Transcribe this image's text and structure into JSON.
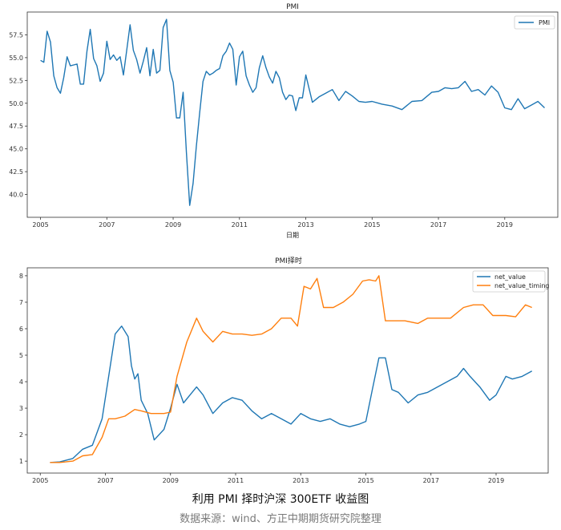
{
  "chart_data": [
    {
      "type": "line",
      "title": "PMI",
      "xlabel": "日期",
      "ylabel": "",
      "xlim": [
        2004.6,
        2020.6
      ],
      "ylim": [
        37.5,
        60.0
      ],
      "xticks": [
        2005,
        2007,
        2009,
        2011,
        2013,
        2015,
        2017,
        2019
      ],
      "yticks": [
        40.0,
        42.5,
        45.0,
        47.5,
        50.0,
        52.5,
        55.0,
        57.5
      ],
      "legend": "top-right",
      "series": [
        {
          "name": "PMI",
          "color": "#1f77b4",
          "x": [
            2005.0,
            2005.1,
            2005.2,
            2005.3,
            2005.4,
            2005.5,
            2005.6,
            2005.7,
            2005.8,
            2005.9,
            2006.0,
            2006.1,
            2006.2,
            2006.3,
            2006.4,
            2006.5,
            2006.6,
            2006.7,
            2006.8,
            2006.9,
            2007.0,
            2007.1,
            2007.2,
            2007.3,
            2007.4,
            2007.5,
            2007.6,
            2007.7,
            2007.8,
            2007.9,
            2008.0,
            2008.1,
            2008.2,
            2008.3,
            2008.4,
            2008.5,
            2008.6,
            2008.7,
            2008.8,
            2008.9,
            2009.0,
            2009.1,
            2009.2,
            2009.3,
            2009.4,
            2009.5,
            2009.6,
            2009.7,
            2009.8,
            2009.9,
            2010.0,
            2010.1,
            2010.2,
            2010.3,
            2010.4,
            2010.5,
            2010.6,
            2010.7,
            2010.8,
            2010.9,
            2011.0,
            2011.1,
            2011.2,
            2011.3,
            2011.4,
            2011.5,
            2011.6,
            2011.7,
            2011.8,
            2011.9,
            2012.0,
            2012.1,
            2012.2,
            2012.3,
            2012.4,
            2012.5,
            2012.6,
            2012.7,
            2012.8,
            2012.9,
            2013.0,
            2013.2,
            2013.4,
            2013.6,
            2013.8,
            2014.0,
            2014.2,
            2014.4,
            2014.6,
            2014.8,
            2015.0,
            2015.3,
            2015.6,
            2015.9,
            2016.2,
            2016.5,
            2016.8,
            2017.0,
            2017.2,
            2017.4,
            2017.6,
            2017.8,
            2018.0,
            2018.2,
            2018.4,
            2018.6,
            2018.8,
            2019.0,
            2019.2,
            2019.4,
            2019.6,
            2019.8,
            2020.0,
            2020.2
          ],
          "y": [
            54.7,
            54.5,
            57.9,
            56.7,
            53.0,
            51.7,
            51.1,
            52.8,
            55.1,
            54.1,
            54.2,
            54.3,
            52.1,
            52.1,
            55.7,
            58.1,
            54.9,
            54.1,
            52.4,
            53.3,
            56.8,
            54.8,
            55.3,
            54.7,
            55.1,
            53.1,
            55.8,
            58.6,
            55.8,
            54.8,
            53.3,
            54.6,
            56.1,
            53.0,
            55.9,
            53.3,
            53.6,
            58.3,
            59.2,
            53.6,
            52.3,
            48.4,
            48.4,
            51.2,
            44.6,
            38.8,
            41.2,
            45.3,
            49.0,
            52.4,
            53.5,
            53.1,
            53.3,
            53.6,
            53.8,
            55.2,
            55.7,
            56.6,
            55.9,
            52.0,
            55.1,
            55.7,
            53.0,
            52.0,
            51.2,
            51.7,
            53.9,
            55.2,
            53.9,
            52.9,
            52.2,
            53.5,
            52.8,
            51.2,
            50.4,
            50.9,
            50.8,
            49.2,
            50.6,
            50.6,
            53.1,
            50.1,
            50.7,
            51.1,
            51.5,
            50.3,
            51.3,
            50.8,
            50.2,
            50.1,
            50.2,
            49.9,
            49.7,
            49.3,
            50.2,
            50.3,
            51.2,
            51.3,
            51.7,
            51.6,
            51.7,
            52.4,
            51.3,
            51.5,
            50.9,
            51.9,
            51.2,
            49.5,
            49.3,
            50.5,
            49.4,
            49.8,
            50.2,
            49.5
          ]
        }
      ]
    },
    {
      "type": "line",
      "title": "PMI择时",
      "xlabel": "",
      "ylabel": "",
      "xlim": [
        2004.6,
        2020.6
      ],
      "ylim": [
        0.55,
        8.3
      ],
      "xticks": [
        2005,
        2007,
        2009,
        2011,
        2013,
        2015,
        2017,
        2019
      ],
      "yticks": [
        1,
        2,
        3,
        4,
        5,
        6,
        7,
        8
      ],
      "legend": "top-right",
      "series": [
        {
          "name": "net_value",
          "color": "#1f77b4",
          "x": [
            2005.3,
            2005.6,
            2006.0,
            2006.3,
            2006.6,
            2006.9,
            2007.1,
            2007.3,
            2007.5,
            2007.7,
            2007.8,
            2007.9,
            2008.0,
            2008.1,
            2008.3,
            2008.5,
            2008.8,
            2009.0,
            2009.2,
            2009.4,
            2009.6,
            2009.8,
            2010.0,
            2010.3,
            2010.6,
            2010.9,
            2011.2,
            2011.5,
            2011.8,
            2012.1,
            2012.4,
            2012.7,
            2013.0,
            2013.3,
            2013.6,
            2013.9,
            2014.2,
            2014.5,
            2014.8,
            2015.0,
            2015.2,
            2015.4,
            2015.6,
            2015.8,
            2016.0,
            2016.3,
            2016.6,
            2016.9,
            2017.2,
            2017.5,
            2017.8,
            2018.0,
            2018.2,
            2018.5,
            2018.8,
            2019.0,
            2019.3,
            2019.5,
            2019.8,
            2020.1
          ],
          "y": [
            0.95,
            0.97,
            1.1,
            1.45,
            1.6,
            2.6,
            4.2,
            5.8,
            6.1,
            5.7,
            4.6,
            4.1,
            4.3,
            3.3,
            2.8,
            1.8,
            2.2,
            3.0,
            3.9,
            3.2,
            3.5,
            3.8,
            3.5,
            2.8,
            3.2,
            3.4,
            3.3,
            2.9,
            2.6,
            2.8,
            2.6,
            2.4,
            2.8,
            2.6,
            2.5,
            2.6,
            2.4,
            2.3,
            2.4,
            2.5,
            3.7,
            4.9,
            4.9,
            3.7,
            3.6,
            3.2,
            3.5,
            3.6,
            3.8,
            4.0,
            4.2,
            4.5,
            4.2,
            3.8,
            3.3,
            3.5,
            4.2,
            4.1,
            4.2,
            4.4
          ]
        },
        {
          "name": "net_value_timing",
          "color": "#ff7f0e",
          "x": [
            2005.3,
            2005.6,
            2006.0,
            2006.3,
            2006.6,
            2006.9,
            2007.1,
            2007.3,
            2007.6,
            2007.9,
            2008.1,
            2008.4,
            2008.8,
            2009.0,
            2009.2,
            2009.5,
            2009.8,
            2010.0,
            2010.3,
            2010.6,
            2010.9,
            2011.2,
            2011.5,
            2011.8,
            2012.1,
            2012.4,
            2012.7,
            2012.9,
            2013.1,
            2013.3,
            2013.5,
            2013.7,
            2014.0,
            2014.3,
            2014.6,
            2014.9,
            2015.1,
            2015.3,
            2015.4,
            2015.6,
            2015.9,
            2016.2,
            2016.6,
            2016.9,
            2017.2,
            2017.6,
            2018.0,
            2018.3,
            2018.6,
            2018.9,
            2019.1,
            2019.3,
            2019.6,
            2019.9,
            2020.1
          ],
          "y": [
            0.95,
            0.95,
            1.0,
            1.2,
            1.25,
            1.9,
            2.6,
            2.6,
            2.7,
            2.95,
            2.9,
            2.8,
            2.8,
            2.85,
            4.2,
            5.5,
            6.4,
            5.9,
            5.5,
            5.9,
            5.8,
            5.8,
            5.75,
            5.8,
            6.0,
            6.4,
            6.4,
            6.1,
            7.6,
            7.5,
            7.9,
            6.8,
            6.8,
            7.0,
            7.3,
            7.8,
            7.85,
            7.8,
            8.0,
            6.3,
            6.3,
            6.3,
            6.2,
            6.4,
            6.4,
            6.4,
            6.8,
            6.9,
            6.9,
            6.5,
            6.5,
            6.5,
            6.45,
            6.9,
            6.8
          ]
        }
      ]
    }
  ],
  "caption": {
    "title": "利用 PMI 择时沪深 300ETF 收益图",
    "source": "数据来源：wind、方正中期期货研究院整理"
  }
}
